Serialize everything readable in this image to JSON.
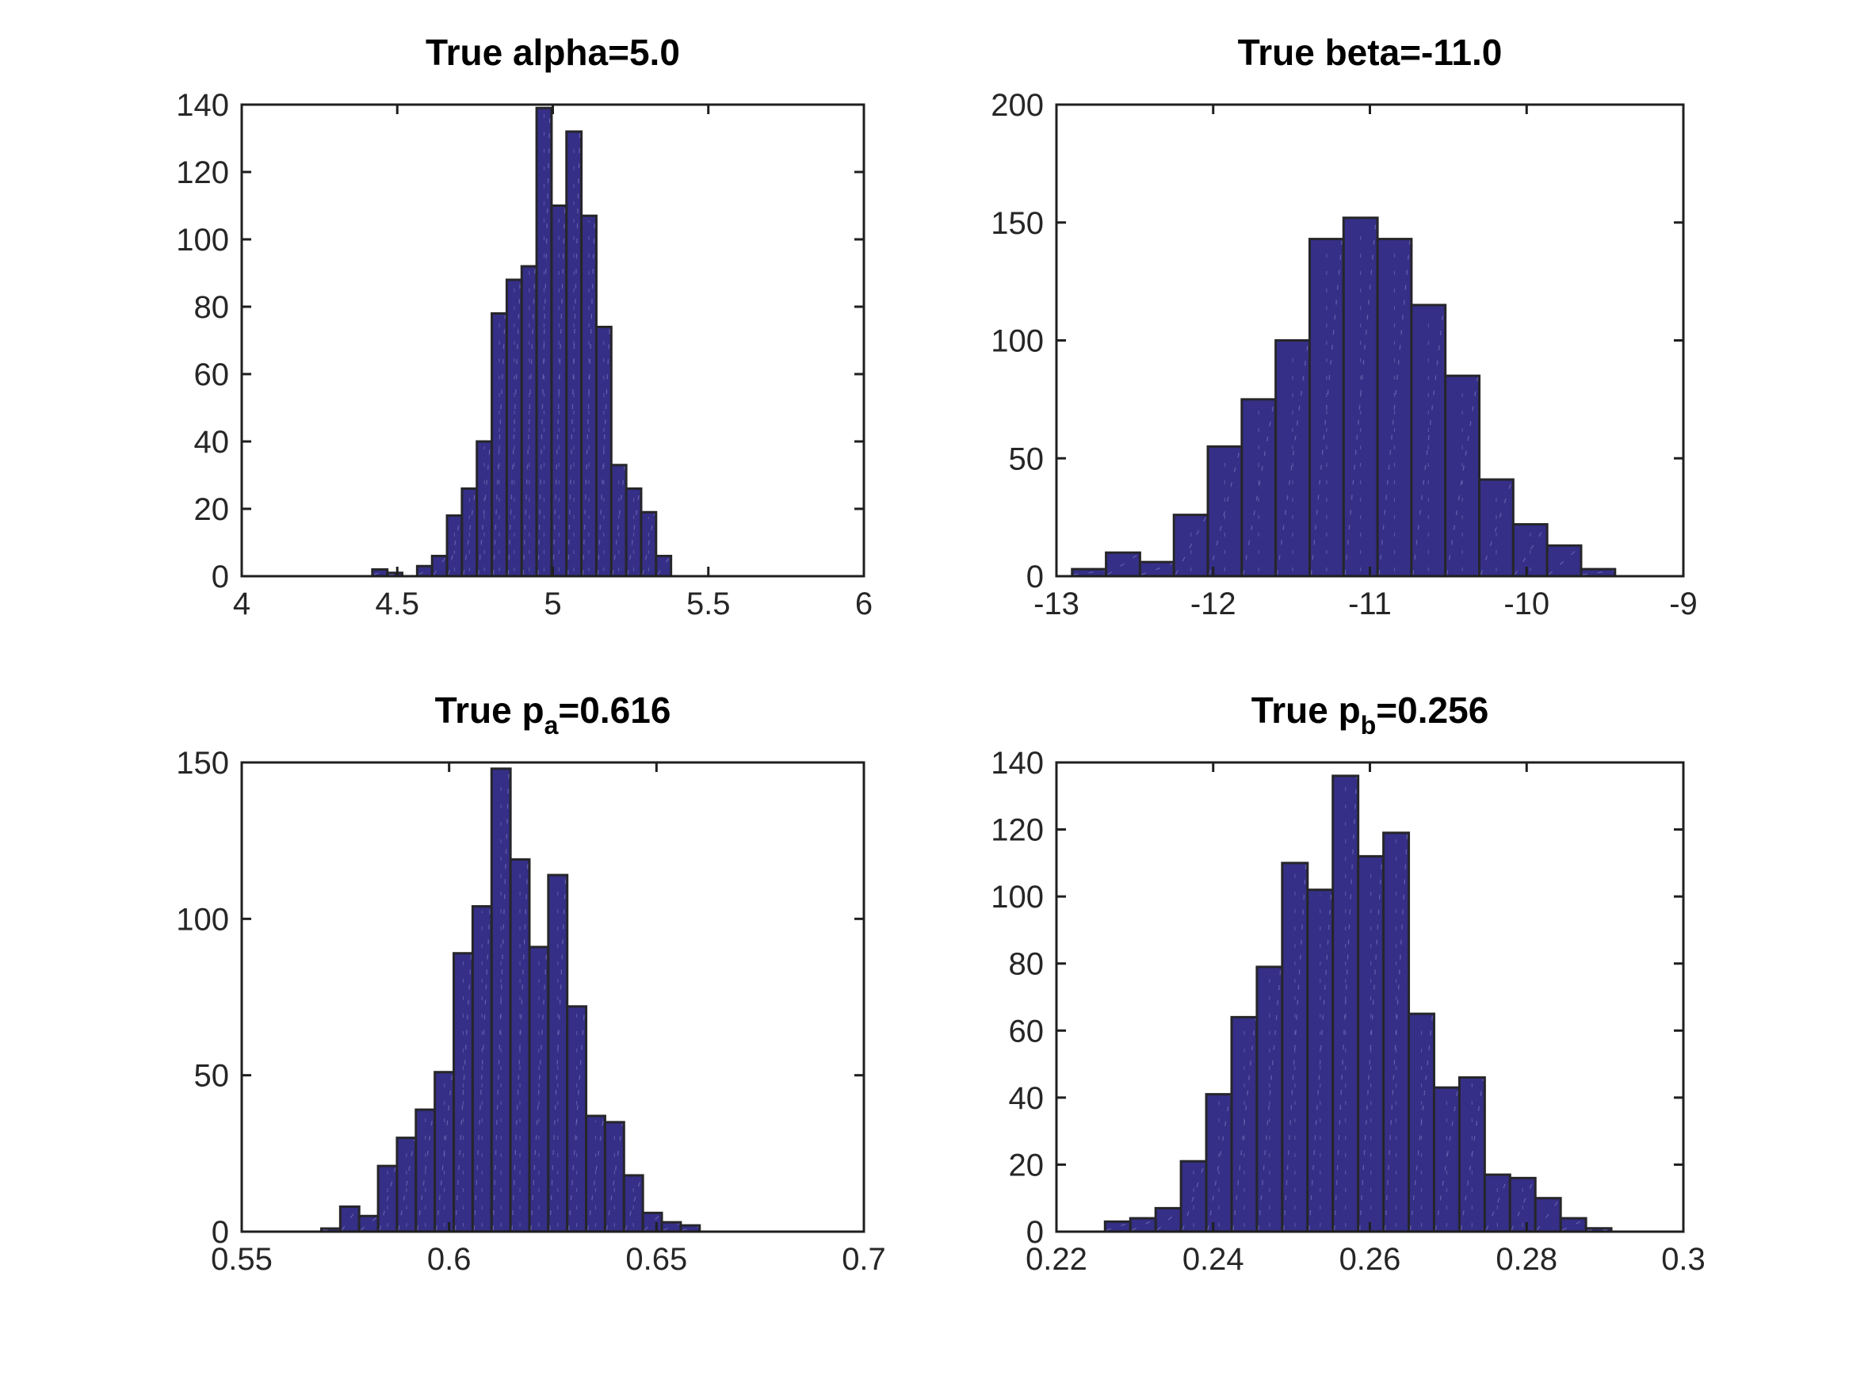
{
  "figure": {
    "background": "#ffffff",
    "bar_fill": "#352f87",
    "bar_edge": "#26262b",
    "bar_texture_color": "#8d89cc",
    "axis_color": "#1f1f1f",
    "tick_label_color": "#262626",
    "title_color": "#000000"
  },
  "chart_data": [
    {
      "type": "bar",
      "id": "alpha",
      "title": "True alpha=5.0",
      "title_runs": [
        {
          "text": "True alpha=5.0",
          "sub": false
        }
      ],
      "xlim": [
        4,
        6
      ],
      "ylim": [
        0,
        140
      ],
      "xtick_values": [
        4,
        4.5,
        5,
        5.5,
        6
      ],
      "xtick_labels": [
        "4",
        "4.5",
        "5",
        "5.5",
        "6"
      ],
      "ytick_values": [
        0,
        20,
        40,
        60,
        80,
        100,
        120,
        140
      ],
      "ytick_labels": [
        "0",
        "20",
        "40",
        "60",
        "80",
        "100",
        "120",
        "140"
      ],
      "grid": false,
      "legend": null,
      "bins": {
        "start": 4.42,
        "width": 0.048
      },
      "counts": [
        2,
        1,
        0,
        3,
        6,
        18,
        26,
        40,
        78,
        88,
        92,
        139,
        110,
        132,
        107,
        74,
        33,
        26,
        19,
        6
      ]
    },
    {
      "type": "bar",
      "id": "beta",
      "title": "True beta=-11.0",
      "title_runs": [
        {
          "text": "True beta=-11.0",
          "sub": false
        }
      ],
      "xlim": [
        -13,
        -9
      ],
      "ylim": [
        0,
        200
      ],
      "xtick_values": [
        -13,
        -12,
        -11,
        -10,
        -9
      ],
      "xtick_labels": [
        "-13",
        "-12",
        "-11",
        "-10",
        "-9"
      ],
      "ytick_values": [
        0,
        50,
        100,
        150,
        200
      ],
      "ytick_labels": [
        "0",
        "50",
        "100",
        "150",
        "200"
      ],
      "grid": false,
      "legend": null,
      "bins": {
        "start": -12.9,
        "width": 0.2165
      },
      "counts": [
        3,
        10,
        6,
        26,
        55,
        75,
        100,
        143,
        152,
        143,
        115,
        85,
        41,
        22,
        13,
        3
      ]
    },
    {
      "type": "bar",
      "id": "pa",
      "title": "True p_a=0.616",
      "title_runs": [
        {
          "text": "True p",
          "sub": false
        },
        {
          "text": "a",
          "sub": true
        },
        {
          "text": "=0.616",
          "sub": false
        }
      ],
      "xlim": [
        0.55,
        0.7
      ],
      "ylim": [
        0,
        150
      ],
      "xtick_values": [
        0.55,
        0.6,
        0.65,
        0.7
      ],
      "xtick_labels": [
        "0.55",
        "0.6",
        "0.65",
        "0.7"
      ],
      "ytick_values": [
        0,
        50,
        100,
        150
      ],
      "ytick_labels": [
        "0",
        "50",
        "100",
        "150"
      ],
      "grid": false,
      "legend": null,
      "bins": {
        "start": 0.5692,
        "width": 0.00456
      },
      "counts": [
        1,
        8,
        5,
        21,
        30,
        39,
        51,
        89,
        104,
        148,
        119,
        91,
        114,
        72,
        37,
        35,
        18,
        6,
        3,
        2
      ]
    },
    {
      "type": "bar",
      "id": "pb",
      "title": "True p_b=0.256",
      "title_runs": [
        {
          "text": "True p",
          "sub": false
        },
        {
          "text": "b",
          "sub": true
        },
        {
          "text": "=0.256",
          "sub": false
        }
      ],
      "xlim": [
        0.22,
        0.3
      ],
      "ylim": [
        0,
        140
      ],
      "xtick_values": [
        0.22,
        0.24,
        0.26,
        0.28,
        0.3
      ],
      "xtick_labels": [
        "0.22",
        "0.24",
        "0.26",
        "0.28",
        "0.3"
      ],
      "ytick_values": [
        0,
        20,
        40,
        60,
        80,
        100,
        120,
        140
      ],
      "ytick_labels": [
        "0",
        "20",
        "40",
        "60",
        "80",
        "100",
        "120",
        "140"
      ],
      "grid": false,
      "legend": null,
      "bins": {
        "start": 0.2262,
        "width": 0.00323
      },
      "counts": [
        3,
        4,
        7,
        21,
        41,
        64,
        79,
        110,
        102,
        136,
        112,
        119,
        65,
        43,
        46,
        17,
        16,
        10,
        4,
        1
      ]
    }
  ]
}
